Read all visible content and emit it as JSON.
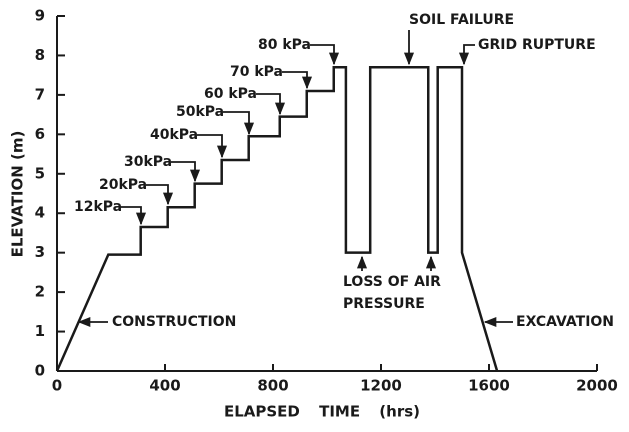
{
  "chart_data": {
    "type": "line",
    "xlabel": "ELAPSED TIME (hrs)",
    "ylabel": "ELEVATION (m)",
    "x": [
      0,
      190,
      310,
      310,
      410,
      410,
      510,
      510,
      610,
      610,
      710,
      710,
      825,
      825,
      925,
      925,
      1025,
      1025,
      1070,
      1070,
      1160,
      1160,
      1375,
      1375,
      1410,
      1410,
      1500,
      1500,
      1630
    ],
    "values": [
      0,
      2.95,
      2.95,
      3.65,
      3.65,
      4.15,
      4.15,
      4.75,
      4.75,
      5.35,
      5.35,
      5.95,
      5.95,
      6.45,
      6.45,
      7.1,
      7.1,
      7.7,
      7.7,
      3.0,
      3.0,
      7.7,
      7.7,
      3.0,
      3.0,
      7.7,
      7.7,
      3.0,
      0
    ],
    "color": "#1a1a1a",
    "xlim": [
      0,
      2000
    ],
    "xticks": [
      0,
      400,
      800,
      1200,
      1600,
      2000
    ],
    "ylim": [
      0,
      9
    ],
    "yticks": [
      0,
      1,
      2,
      3,
      4,
      5,
      6,
      7,
      8,
      9
    ],
    "grid": false,
    "annotations": [
      "12kPa",
      "20kPa",
      "30kPa",
      "40kPa",
      "50kPa",
      "60 kPa",
      "70 kPa",
      "80 kPa",
      "SOIL FAILURE",
      "GRID RUPTURE",
      "LOSS OF AIR",
      "PRESSURE",
      "CONSTRUCTION",
      "EXCAVATION"
    ]
  }
}
